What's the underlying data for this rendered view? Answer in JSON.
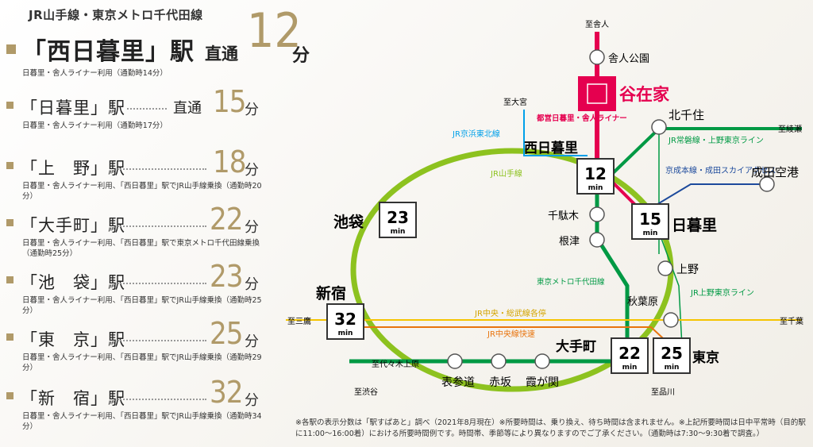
{
  "header": {
    "line_title": "JR山手線・東京メトロ千代田線",
    "main_station": "「西日暮里」駅",
    "main_direct": "直通",
    "main_minutes": "12",
    "main_unit": "分",
    "main_note": "日暮里・舎人ライナー利用（通勤時14分）"
  },
  "stations": [
    {
      "name": "「日暮里」駅",
      "direct": "直通",
      "minutes": "15",
      "unit": "分",
      "note": "日暮里・舎人ライナー利用（通勤時17分）"
    },
    {
      "name": "「上　野」駅",
      "direct": "",
      "minutes": "18",
      "unit": "分",
      "note": "日暮里・舎人ライナー利用、「西日暮里」駅でJR山手線乗換（通勤時20分）"
    },
    {
      "name": "「大手町」駅",
      "direct": "",
      "minutes": "22",
      "unit": "分",
      "note": "日暮里・舎人ライナー利用、「西日暮里」駅で東京メトロ千代田線乗換（通勤時25分）"
    },
    {
      "name": "「池　袋」駅",
      "direct": "",
      "minutes": "23",
      "unit": "分",
      "note": "日暮里・舎人ライナー利用、「西日暮里」駅でJR山手線乗換（通勤時25分）"
    },
    {
      "name": "「東　京」駅",
      "direct": "",
      "minutes": "25",
      "unit": "分",
      "note": "日暮里・舎人ライナー利用、「西日暮里」駅でJR山手線乗換（通勤時29分）"
    },
    {
      "name": "「新　宿」駅",
      "direct": "",
      "minutes": "32",
      "unit": "分",
      "note": "日暮里・舎人ライナー利用、「西日暮里」駅でJR山手線乗換（通勤時34分）"
    }
  ],
  "map": {
    "to_toneri": "至舎人",
    "toneri_koen": "舎人公園",
    "yazaike": "谷在家",
    "to_omiya": "至大宮",
    "toei_line": "都営日暮里・舎人ライナー",
    "keihin_tohoku": "JR京浜東北線",
    "nishi_nippori": "西日暮里",
    "kitasenju": "北千住",
    "to_ayase": "至綾瀬",
    "joban": "JR常磐線・上野東京ライン",
    "yamanote": "JR山手線",
    "keisei": "京成本線・成田スカイアクセス",
    "narita": "成田空港",
    "ikebukuro": "池袋",
    "sendagi": "千駄木",
    "nezu": "根津",
    "nippori": "日暮里",
    "ueno": "上野",
    "chiyoda": "東京メトロ千代田線",
    "ueno_tokyo": "JR上野東京ライン",
    "shinjuku": "新宿",
    "akihabara": "秋葉原",
    "to_mitaka": "至三鷹",
    "to_chiba": "至千葉",
    "sobu": "JR中央・総武線各停",
    "chuo": "JR中央線快速",
    "otemachi": "大手町",
    "tokyo": "東京",
    "to_yoyogi": "至代々木上原",
    "omotesando": "表参道",
    "akasaka": "赤坂",
    "kasumigaseki": "霞が関",
    "to_shibuya": "至渋谷",
    "to_shinagawa": "至品川",
    "min": "min",
    "badge_nishi": "12",
    "badge_nippori": "15",
    "badge_ikebukuro": "23",
    "badge_shinjuku": "32",
    "badge_otemachi": "22",
    "badge_tokyo": "25"
  },
  "footnote": "※各駅の表示分数は「駅すぱあと」調べ（2021年8月現在）※所要時間は、乗り換え、待ち時間は含まれません。※上記所要時間は日中平常時（目的駅に11:00〜16:00着）における所要時間例です。時間帯、季節等により異なりますのでご了承ください。（通勤時は7:30〜9:30着で調査。）",
  "colors": {
    "accent_gold": "#b09a69",
    "yamanote": "#8dc21f",
    "chiyoda": "#009944",
    "toei_liner": "#e5004f",
    "sobu": "#f5c400",
    "chuo": "#e8740e",
    "keihin": "#00a0e9",
    "keisei": "#1d4a9c"
  }
}
